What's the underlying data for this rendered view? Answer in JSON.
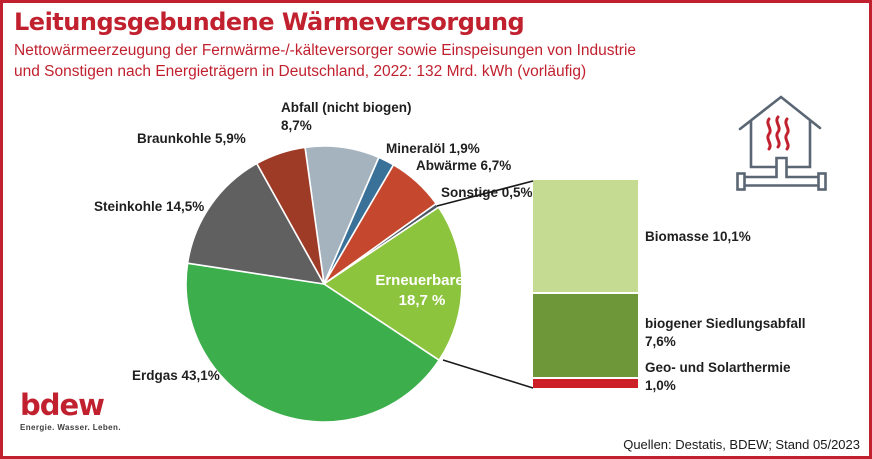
{
  "frame": {
    "border_color": "#C1212F",
    "background": "#FFFFFF"
  },
  "header": {
    "title": "Leitungsgebundene Wärmeversorgung",
    "subtitle_line1": "Nettowärmeerzeugung der Fernwärme-/-kälteversorger sowie Einspeisungen von Industrie",
    "subtitle_line2": "und Sonstigen nach Energieträgern in Deutschland, 2022: 132 Mrd. kWh (vorläufig)",
    "text_color": "#C1212F"
  },
  "chart_data": {
    "type": "pie",
    "title": "Leitungsgebundene Wärmeversorgung",
    "subtitle": "Nettowärmeerzeugung der Fernwärme-/-kälteversorger sowie Einspeisungen von Industrie und Sonstigen nach Energieträgern in Deutschland, 2022: 132 Mrd. kWh (vorläufig)",
    "unit": "%",
    "year": "2022",
    "total_label": "132 Mrd. kWh (vorläufig)",
    "start_angle_deg": -7.9,
    "direction": "clockwise",
    "labels_position": "outside, Erneuerbare label inside slice",
    "slices": [
      {
        "id": "abfall-nicht-biogen",
        "name": "Abfall (nicht biogen)",
        "value": 8.7,
        "color": "#A5B3BF",
        "label_lines": [
          "Abfall (nicht biogen)",
          "8,7%"
        ]
      },
      {
        "id": "mineraloel",
        "name": "Mineralöl",
        "value": 1.9,
        "color": "#3A7199",
        "label_lines": [
          "Mineralöl 1,9%"
        ]
      },
      {
        "id": "abwaerme",
        "name": "Abwärme",
        "value": 6.7,
        "color": "#C5472E",
        "label_lines": [
          "Abwärme 6,7%"
        ]
      },
      {
        "id": "sonstige",
        "name": "Sonstige",
        "value": 0.5,
        "color": "#4D5A66",
        "label_lines": [
          "Sonstige 0,5%"
        ]
      },
      {
        "id": "erneuerbare",
        "name": "Erneuerbare",
        "value": 18.7,
        "color": "#8CC43D",
        "label_lines": [
          "Erneuerbare:",
          "18,7 %"
        ]
      },
      {
        "id": "erdgas",
        "name": "Erdgas",
        "value": 43.1,
        "color": "#3CAE4B",
        "label_lines": [
          "Erdgas 43,1%"
        ]
      },
      {
        "id": "steinkohle",
        "name": "Steinkohle",
        "value": 14.5,
        "color": "#606060",
        "label_lines": [
          "Steinkohle 14,5%"
        ]
      },
      {
        "id": "braunkohle",
        "name": "Braunkohle",
        "value": 5.9,
        "color": "#9E3B26",
        "label_lines": [
          "Braunkohle 5,9%"
        ]
      }
    ],
    "breakdown_bar": {
      "parent": "Erneuerbare",
      "parent_value": 18.7,
      "segments": [
        {
          "id": "biomasse",
          "name": "Biomasse",
          "value": 10.1,
          "color": "#C6DB92",
          "label_lines": [
            "Biomasse 10,1%"
          ]
        },
        {
          "id": "biogener-siedlungsabfall",
          "name": "biogener Siedlungsabfall",
          "value": 7.6,
          "color": "#6D9739",
          "label_lines": [
            "biogener Siedlungsabfall",
            "7,6%"
          ]
        },
        {
          "id": "geo-und-solarthermie",
          "name": "Geo- und Solarthermie",
          "value": 1.0,
          "color": "#CC1F26",
          "label_lines": [
            "Geo- und Solarthermie",
            "1,0%"
          ]
        }
      ]
    }
  },
  "icons": {
    "house_heat_icon": "house with heat waves connected to district-heating pipe",
    "house_outline_color": "#5A6673",
    "heat_wave_color": "#C1212F"
  },
  "logo": {
    "word": "bdew",
    "tagline": "Energie. Wasser. Leben.",
    "color": "#C1212F"
  },
  "source": "Quellen: Destatis, BDEW; Stand 05/2023"
}
